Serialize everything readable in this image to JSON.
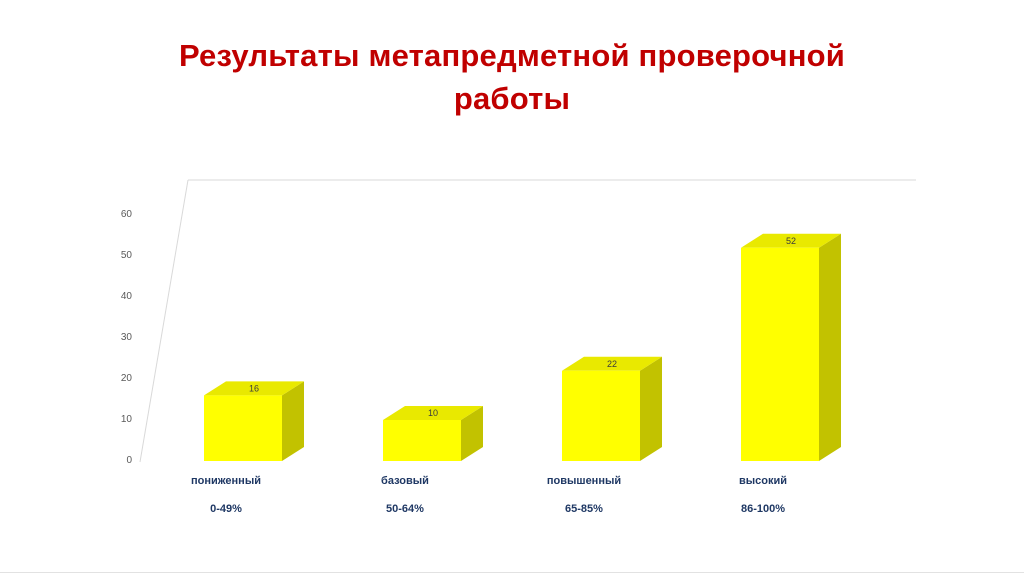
{
  "slide": {
    "title_lines": [
      "Результаты метапредметной проверочной",
      "работы"
    ],
    "title_color": "#C00000",
    "background_color": "#FFFFFF"
  },
  "chart_data": {
    "type": "bar",
    "style": "3d-column",
    "title": "Результаты метапредметной проверочной работы",
    "categories": [
      "пониженный",
      "базовый",
      "повышенный",
      "высокий"
    ],
    "category_sublabels": [
      "0-49%",
      "50-64%",
      "65-85%",
      "86-100%"
    ],
    "values": [
      16,
      10,
      22,
      52
    ],
    "ylim": [
      0,
      60
    ],
    "yticks": [
      0,
      10,
      20,
      30,
      40,
      50,
      60
    ],
    "grid": false,
    "legend": false,
    "xlabel": "",
    "ylabel": "",
    "colors": {
      "bar_front": "#FFFF00",
      "bar_top": "#E9E900",
      "bar_side": "#C2C200",
      "axis_line": "#D9D9D9",
      "tick_label": "#595959",
      "category_label": "#1F3864",
      "value_label": "#3B3B3B"
    }
  }
}
